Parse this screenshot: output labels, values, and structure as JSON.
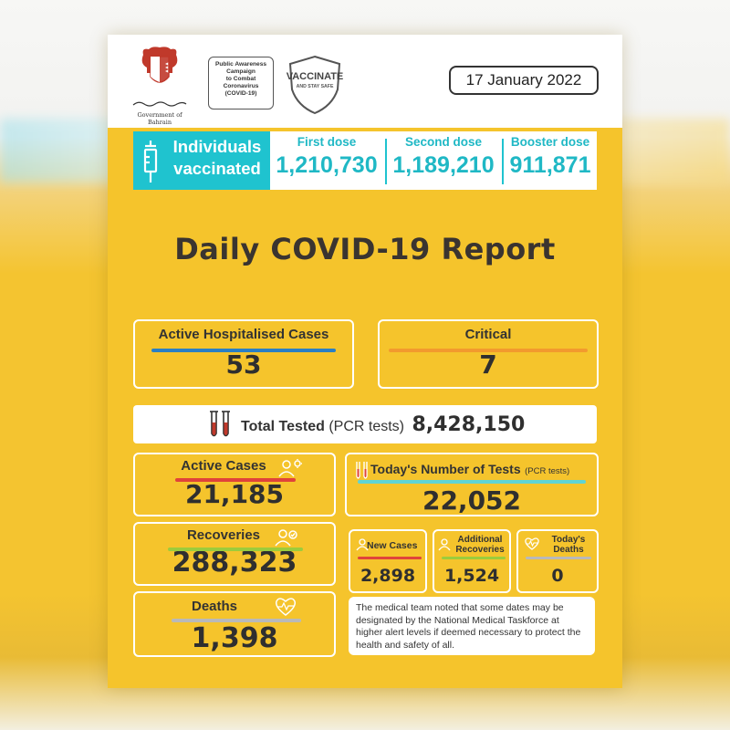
{
  "header": {
    "government_name": "Government of Bahrain",
    "campaign_lines": [
      "Public Awareness",
      "Campaign",
      "to Combat",
      "Coronavirus",
      "(COVID-19)"
    ],
    "vaccinate_title": "VACCINATE",
    "vaccinate_sub": "AND STAY SAFE",
    "date": "17 January 2022"
  },
  "vaccination": {
    "label_line1": "Individuals",
    "label_line2": "vaccinated",
    "first_dose_label": "First dose",
    "first_dose_value": "1,210,730",
    "second_dose_label": "Second dose",
    "second_dose_value": "1,189,210",
    "booster_dose_label": "Booster dose",
    "booster_dose_value": "911,871"
  },
  "report_title": "Daily COVID-19 Report",
  "hospitalised": {
    "label": "Active Hospitalised Cases",
    "value": "53"
  },
  "critical": {
    "label": "Critical",
    "value": "7"
  },
  "total_tested": {
    "label": "Total Tested",
    "sub": "(PCR tests)",
    "value": "8,428,150"
  },
  "active_cases": {
    "label": "Active Cases",
    "value": "21,185"
  },
  "todays_tests": {
    "label": "Today's Number of Tests",
    "sub": "(PCR tests)",
    "value": "22,052"
  },
  "recoveries": {
    "label": "Recoveries",
    "value": "288,323"
  },
  "new_cases": {
    "label": "New Cases",
    "value": "2,898"
  },
  "additional_recoveries": {
    "label_line1": "Additional",
    "label_line2": "Recoveries",
    "value": "1,524"
  },
  "todays_deaths": {
    "label_line1": "Today's",
    "label_line2": "Deaths",
    "value": "0"
  },
  "deaths": {
    "label": "Deaths",
    "value": "1,398"
  },
  "note": "The medical team noted that some dates may be designated by the National Medical Taskforce at higher alert levels if deemed necessary to protect the health and safety of all.",
  "colors": {
    "yellow": "#f5c42c",
    "teal": "#1fc3cf",
    "blue_bar": "#2a7fc4",
    "orange_bar": "#f29a2e",
    "red_bar": "#e0433a",
    "green_bar": "#9ccc3c",
    "grey_bar": "#b9b9b9",
    "cyan_bar": "#5fd4d4"
  }
}
